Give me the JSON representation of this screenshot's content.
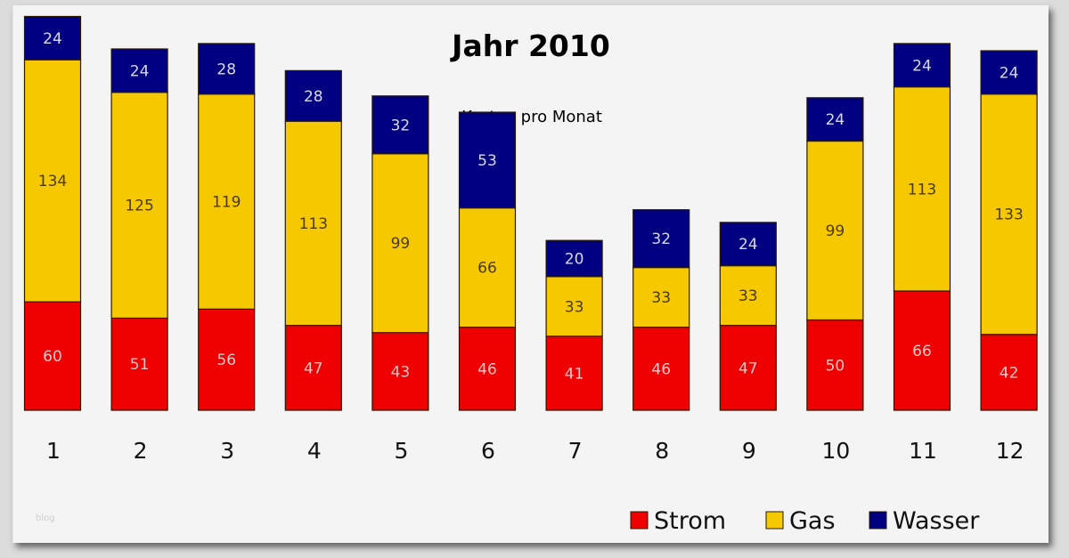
{
  "chart_data": {
    "type": "bar",
    "stacked": true,
    "title": "Jahr 2010",
    "subtitle": "Kosten pro Monat",
    "xlabel": "",
    "ylabel": "",
    "categories": [
      "1",
      "2",
      "3",
      "4",
      "5",
      "6",
      "7",
      "8",
      "9",
      "10",
      "11",
      "12"
    ],
    "series": [
      {
        "name": "Strom",
        "color": "#ee0000",
        "label_color": "#f4c8c8",
        "values": [
          60,
          51,
          56,
          47,
          43,
          46,
          41,
          46,
          47,
          50,
          66,
          42
        ]
      },
      {
        "name": "Gas",
        "color": "#f5c800",
        "label_color": "#4a3a00",
        "values": [
          134,
          125,
          119,
          113,
          99,
          66,
          33,
          33,
          33,
          99,
          113,
          133
        ]
      },
      {
        "name": "Wasser",
        "color": "#000080",
        "label_color": "#d8d8f0",
        "values": [
          24,
          24,
          28,
          28,
          32,
          53,
          20,
          32,
          24,
          24,
          24,
          24
        ]
      }
    ],
    "ylim": [
      0,
      220
    ],
    "grid": false,
    "legend_position": "bottom-right",
    "watermark": "blog"
  }
}
